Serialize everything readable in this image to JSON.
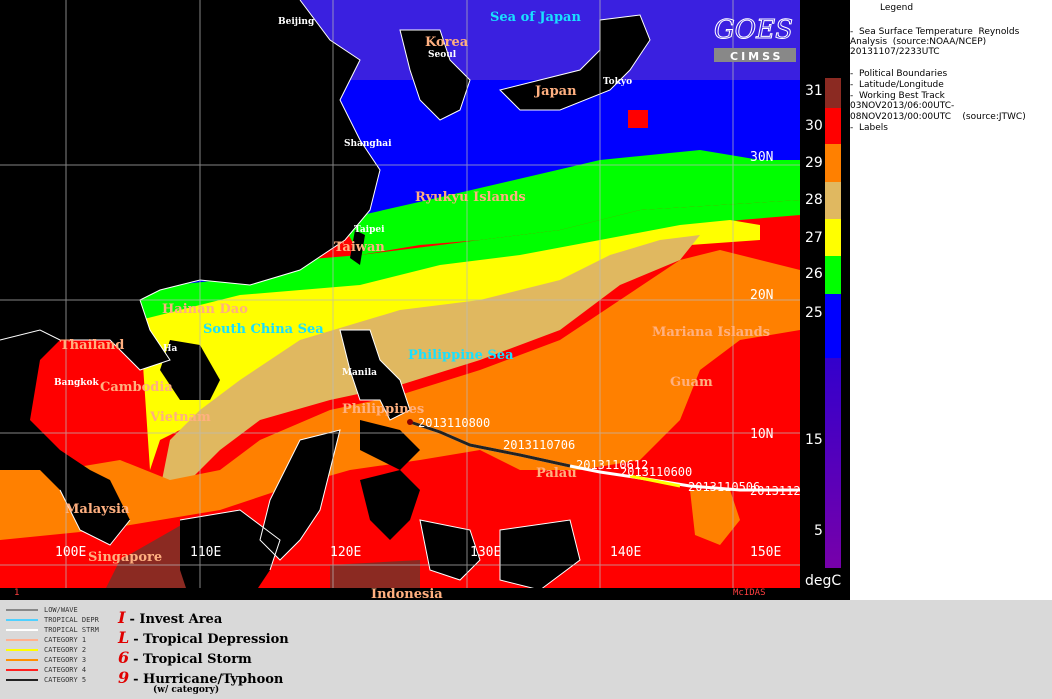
{
  "legend": {
    "title": "Legend",
    "rows": [
      "-  Sea Surface Temperature  Reynolds",
      "Analysis  (source:NOAA/NCEP)",
      "20131107/2233UTC",
      "",
      "-  Political Boundaries",
      "-  Latitude/Longitude",
      "-  Working Best Track",
      "03NOV2013/06:00UTC-",
      "08NOV2013/00:00UTC    (source:JTWC)",
      "-  Labels"
    ]
  },
  "colorbar": {
    "unit": "degC",
    "ticks": [
      "31",
      "30",
      "29",
      "28",
      "27",
      "26",
      "25",
      "15",
      "5"
    ],
    "colors": {
      "c31": "#8b2a22",
      "c30": "#ff0000",
      "c29": "#ff8000",
      "c28": "#e0b860",
      "c27": "#ffff00",
      "c26": "#00ff00",
      "c25": "#0000ff",
      "c20": "#3300cc",
      "c15": "#5500aa",
      "c5": "#7700aa"
    }
  },
  "map": {
    "seas": {
      "japan": "Sea of Japan",
      "scs": "South China Sea",
      "phil": "Philippine Sea"
    },
    "countries": {
      "korea": "Korea",
      "japan": "Japan",
      "ryukyu": "Ryukyu Islands",
      "taiwan": "Taiwan",
      "hainan": "Hainan Dao",
      "thailand": "Thailand",
      "cambodia": "Cambodia",
      "vietnam": "Vietnam",
      "philippines": "Philippines",
      "palau": "Palau",
      "malaysia": "Malaysia",
      "singapore": "Singapore",
      "indonesia": "Indonesia",
      "mariana": "Mariana Islands",
      "guam": "Guam"
    },
    "cities": {
      "beijing": "Beijing",
      "seoul": "Seoul",
      "tokyo": "Tokyo",
      "shanghai": "Shanghai",
      "taipei": "Taipei",
      "hanoi": "Ha",
      "bangkok": "Bangkok",
      "manila": "Manila"
    },
    "gridlabels": {
      "n30": "30N",
      "n20": "20N",
      "n10": "10N",
      "e100": "100E",
      "e110": "110E",
      "e120": "120E",
      "e130": "130E",
      "e140": "140E",
      "e150": "150E"
    },
    "track": {
      "t1": "2013110800",
      "t2": "2013110706",
      "t3": "2013110612",
      "t4": "2013110600",
      "t5": "2013110506",
      "t6": "2013112"
    },
    "footer_left": "1",
    "footer_right": "McIDAS"
  },
  "bottom": {
    "lines": [
      {
        "label": "LOW/WAVE",
        "color": "#888888"
      },
      {
        "label": "TROPICAL DEPR",
        "color": "#4fd0ff"
      },
      {
        "label": "TROPICAL STRM",
        "color": "#ffffff"
      },
      {
        "label": "CATEGORY 1",
        "color": "#ffb090"
      },
      {
        "label": "CATEGORY 2",
        "color": "#ffff00"
      },
      {
        "label": "CATEGORY 3",
        "color": "#ff9000"
      },
      {
        "label": "CATEGORY 4",
        "color": "#ff2020"
      },
      {
        "label": "CATEGORY 5",
        "color": "#222222"
      }
    ],
    "symbols": {
      "invest": "- Invest Area",
      "td": "- Tropical Depression",
      "ts": "- Tropical Storm",
      "hurr": "- Hurricane/Typhoon",
      "note": "(w/ category)"
    },
    "glyphs": {
      "invest": "I",
      "td": "L",
      "ts": "6",
      "hurr": "9"
    }
  },
  "logo": {
    "text": "CIMSS"
  }
}
